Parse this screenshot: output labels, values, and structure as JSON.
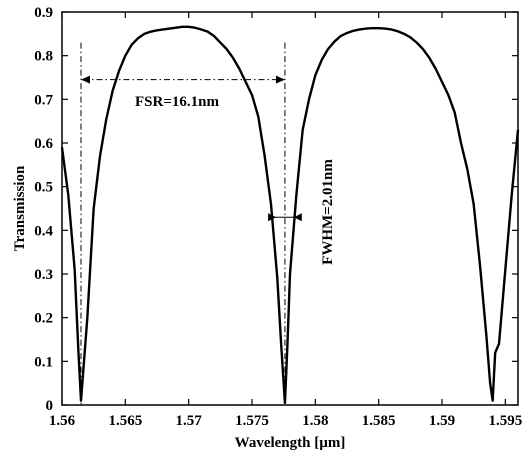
{
  "chart_data": {
    "type": "line",
    "title": "",
    "xlabel": "Wavelength [µm]",
    "ylabel": "Transmission",
    "xlim": [
      1.56,
      1.596
    ],
    "ylim": [
      0,
      0.9
    ],
    "x_ticks": [
      "1.56",
      "1.565",
      "1.57",
      "1.575",
      "1.58",
      "1.585",
      "1.59",
      "1.595"
    ],
    "y_ticks": [
      "0",
      "0.1",
      "0.2",
      "0.3",
      "0.4",
      "0.5",
      "0.6",
      "0.7",
      "0.8",
      "0.9"
    ],
    "grid": false,
    "legend": "none",
    "series": [
      {
        "x": [
          1.56,
          1.5605,
          1.561,
          1.5613,
          1.5615,
          1.562,
          1.5625,
          1.563,
          1.5635,
          1.564,
          1.5645,
          1.565,
          1.5655,
          1.566,
          1.5665,
          1.567,
          1.5675,
          1.568,
          1.5685,
          1.569,
          1.5695,
          1.57,
          1.5705,
          1.571,
          1.5715,
          1.572,
          1.5725,
          1.573,
          1.5735,
          1.574,
          1.5745,
          1.575,
          1.5755,
          1.576,
          1.5765,
          1.577,
          1.5773,
          1.5776,
          1.5778,
          1.578,
          1.5785,
          1.579,
          1.5795,
          1.58,
          1.5805,
          1.581,
          1.5815,
          1.582,
          1.5825,
          1.583,
          1.5835,
          1.584,
          1.5845,
          1.585,
          1.5855,
          1.586,
          1.5865,
          1.587,
          1.5875,
          1.588,
          1.5885,
          1.589,
          1.5895,
          1.59,
          1.5905,
          1.591,
          1.5915,
          1.592,
          1.5925,
          1.593,
          1.5935,
          1.5938,
          1.594,
          1.5942,
          1.5945,
          1.595,
          1.5955,
          1.596
        ],
        "y": [
          0.59,
          0.48,
          0.31,
          0.12,
          0.01,
          0.2,
          0.45,
          0.57,
          0.655,
          0.72,
          0.765,
          0.8,
          0.825,
          0.84,
          0.85,
          0.855,
          0.858,
          0.86,
          0.862,
          0.864,
          0.866,
          0.866,
          0.864,
          0.86,
          0.855,
          0.845,
          0.83,
          0.815,
          0.795,
          0.77,
          0.74,
          0.71,
          0.66,
          0.57,
          0.46,
          0.29,
          0.14,
          0.005,
          0.14,
          0.3,
          0.48,
          0.63,
          0.7,
          0.755,
          0.79,
          0.815,
          0.832,
          0.845,
          0.852,
          0.857,
          0.86,
          0.862,
          0.863,
          0.863,
          0.862,
          0.86,
          0.856,
          0.85,
          0.842,
          0.83,
          0.815,
          0.795,
          0.77,
          0.74,
          0.71,
          0.67,
          0.6,
          0.54,
          0.46,
          0.32,
          0.16,
          0.05,
          0.01,
          0.12,
          0.14,
          0.31,
          0.48,
          0.63
        ]
      }
    ],
    "annotations": [
      {
        "text": "FSR=16.1nm"
      },
      {
        "text": "FWHM=2.01nm"
      }
    ]
  }
}
